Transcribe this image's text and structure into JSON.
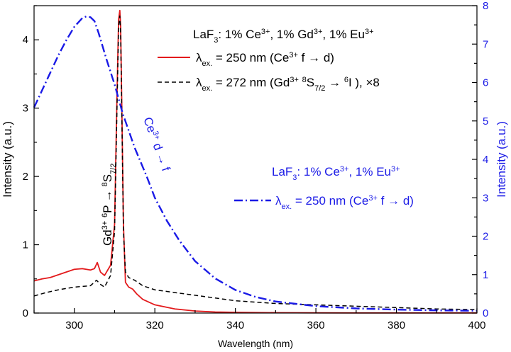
{
  "chart_data": {
    "type": "line",
    "xlabel": "Wavelength (nm)",
    "ylabel_left": "Intensity (a.u.)",
    "ylabel_right": "Intensity (a.u.)",
    "xlim": [
      290,
      400
    ],
    "ylim_left": [
      0,
      4.5
    ],
    "ylim_right": [
      0,
      8
    ],
    "x_ticks": [
      300,
      320,
      340,
      360,
      380,
      400
    ],
    "y_ticks_left": [
      0,
      1,
      2,
      3,
      4
    ],
    "y_ticks_right": [
      0,
      1,
      2,
      3,
      4,
      5,
      6,
      7,
      8
    ],
    "colors": {
      "red": "#e31a1c",
      "black": "#000000",
      "blue": "#1a1ae6"
    },
    "legend_top": {
      "title_parts": [
        "LaF",
        "3",
        ": 1% Ce",
        "3+",
        ", 1% Gd",
        "3+",
        ", 1% Eu",
        "3+"
      ],
      "entry1_parts": [
        "λ",
        "ex.",
        " = 250 nm (Ce",
        "3+",
        " f → d)"
      ],
      "entry2_parts": [
        "λ",
        "ex.",
        " = 272 nm (Gd",
        "3+",
        " ",
        "8",
        "S",
        "7/2",
        " → ",
        "6",
        "I ), ×8"
      ]
    },
    "legend_blue": {
      "title_parts": [
        "LaF",
        "3",
        ": 1% Ce",
        "3+",
        ", 1% Eu",
        "3+"
      ],
      "entry_parts": [
        "λ",
        "ex.",
        " = 250 nm (Ce",
        "3+",
        " f → d)"
      ]
    },
    "annotations": {
      "gd_parts": [
        "Gd",
        "3+",
        " ",
        "6",
        "P → ",
        "8",
        "S",
        "7/2"
      ],
      "ce_parts": [
        "Ce",
        "3+",
        " d → f"
      ]
    },
    "series": [
      {
        "name": "λex. = 250 nm (Ce3+ f → d) [LaF3: 1% Ce3+, 1% Gd3+, 1% Eu3+]",
        "axis": "left",
        "style": "solid",
        "color": "#e31a1c",
        "x": [
          290,
          292,
          294,
          296,
          298,
          300,
          302,
          304,
          305,
          305.7,
          306.5,
          307.5,
          309,
          310,
          310.6,
          311,
          311.3,
          311.5,
          311.8,
          312.2,
          312.7,
          313.5,
          314.5,
          315.5,
          317,
          320,
          325,
          330,
          335,
          340,
          350,
          360,
          370,
          380,
          390,
          400
        ],
        "y": [
          0.47,
          0.5,
          0.52,
          0.56,
          0.6,
          0.64,
          0.65,
          0.63,
          0.65,
          0.74,
          0.6,
          0.55,
          0.7,
          1.3,
          3.2,
          4.3,
          4.43,
          4.2,
          3.0,
          1.3,
          0.45,
          0.38,
          0.35,
          0.28,
          0.2,
          0.12,
          0.06,
          0.03,
          0.015,
          0.01,
          0.005,
          0.003,
          0.002,
          0.002,
          0.002,
          0.002
        ]
      },
      {
        "name": "λex. = 272 nm (Gd3+ 8S7/2 → 6I ), ×8",
        "axis": "left",
        "style": "dashed",
        "color": "#000000",
        "x": [
          290,
          293,
          296,
          300,
          304,
          305.5,
          306.5,
          307.5,
          309,
          310,
          310.6,
          311,
          311.3,
          311.5,
          311.8,
          312.2,
          312.7,
          313.5,
          315,
          317,
          320,
          325,
          330,
          335,
          340,
          350,
          360,
          370,
          380,
          390,
          400
        ],
        "y": [
          0.25,
          0.3,
          0.34,
          0.38,
          0.4,
          0.48,
          0.42,
          0.38,
          0.55,
          1.2,
          3.0,
          4.2,
          4.35,
          4.1,
          2.9,
          1.2,
          0.6,
          0.52,
          0.48,
          0.4,
          0.34,
          0.3,
          0.26,
          0.22,
          0.18,
          0.14,
          0.12,
          0.1,
          0.08,
          0.06,
          0.05
        ]
      },
      {
        "name": "λex. = 250 nm (Ce3+ f → d) [LaF3: 1% Ce3+, 1% Eu3+]",
        "axis": "right",
        "style": "dashdot",
        "color": "#1a1ae6",
        "x": [
          290,
          292,
          294,
          296,
          298,
          300,
          302,
          303,
          304,
          305,
          306,
          308,
          310,
          312,
          315,
          318,
          320,
          323,
          326,
          330,
          335,
          340,
          345,
          350,
          360,
          370,
          380,
          390,
          400
        ],
        "y": [
          5.35,
          5.8,
          6.25,
          6.7,
          7.1,
          7.45,
          7.68,
          7.72,
          7.7,
          7.6,
          7.3,
          6.6,
          5.95,
          5.2,
          4.3,
          3.55,
          3.0,
          2.4,
          1.9,
          1.35,
          0.9,
          0.6,
          0.42,
          0.3,
          0.18,
          0.12,
          0.09,
          0.07,
          0.06
        ]
      }
    ]
  }
}
